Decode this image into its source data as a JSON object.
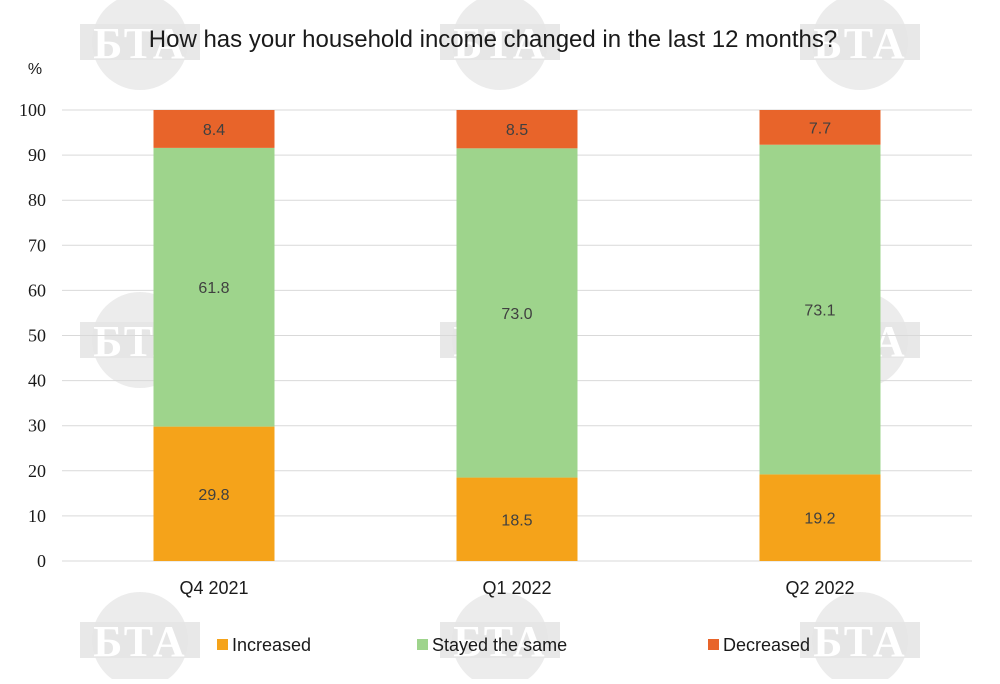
{
  "colors": {
    "increased": "#F5A31A",
    "stayed": "#9ED48C",
    "decreased": "#E8642A",
    "grid": "#D9D9D9",
    "watermark": "#E6E6E6"
  },
  "watermark_text": "БТА",
  "chart_data": {
    "type": "bar",
    "stacked": true,
    "title": "How has your household income changed in the last 12 months?",
    "ylabel": "%",
    "xlabel": "",
    "ylim": [
      0,
      100
    ],
    "yticks": [
      0,
      10,
      20,
      30,
      40,
      50,
      60,
      70,
      80,
      90,
      100
    ],
    "grid": true,
    "legend_position": "bottom",
    "categories": [
      "Q4 2021",
      "Q1 2022",
      "Q2 2022"
    ],
    "series": [
      {
        "name": "Increased",
        "color": "#F5A31A",
        "values": [
          29.8,
          18.5,
          19.2
        ],
        "labels": [
          "29.8",
          "18.5",
          "19.2"
        ]
      },
      {
        "name": "Stayed the same",
        "color": "#9ED48C",
        "values": [
          61.8,
          73.0,
          73.1
        ],
        "labels": [
          "61.8",
          "73.0",
          "73.1"
        ]
      },
      {
        "name": "Decreased",
        "color": "#E8642A",
        "values": [
          8.4,
          8.5,
          7.7
        ],
        "labels": [
          "8.4",
          "8.5",
          "7.7"
        ]
      }
    ]
  }
}
